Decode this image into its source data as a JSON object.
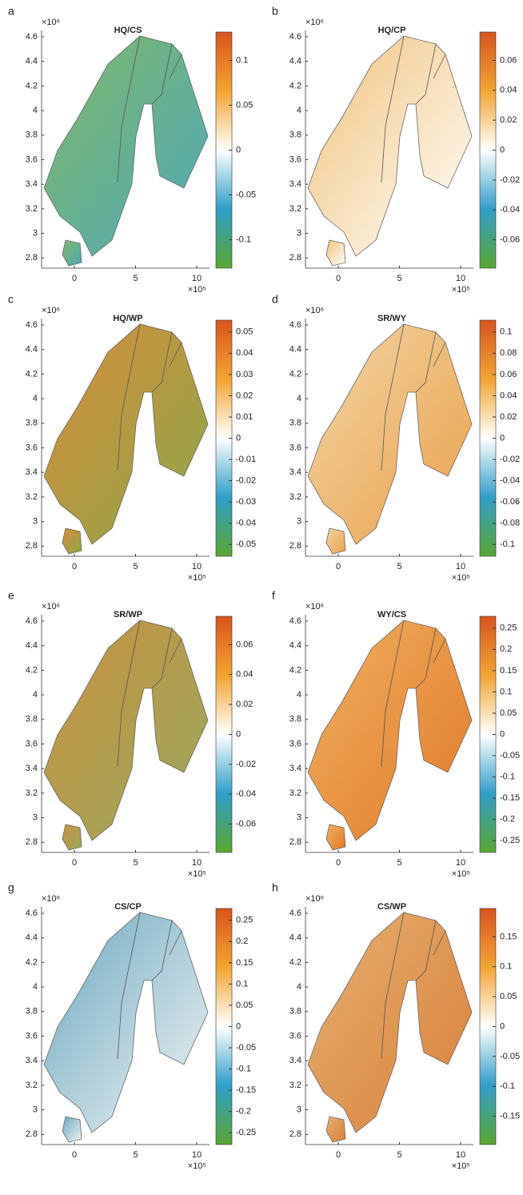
{
  "map_axes": {
    "y_ticks": [
      "4.6",
      "4.4",
      "4.2",
      "4",
      "3.8",
      "3.6",
      "3.4",
      "3.2",
      "3",
      "2.8"
    ],
    "x_ticks": [
      "0",
      "5",
      "10"
    ],
    "y_scale": "×10⁶",
    "x_scale": "×10⁵"
  },
  "panels": [
    {
      "letter": "a",
      "title": "HQ/CS",
      "colorbar_ticks": [
        "0.1",
        "0.05",
        "0",
        "-0.05",
        "-0.1"
      ]
    },
    {
      "letter": "b",
      "title": "HQ/CP",
      "colorbar_ticks": [
        "0.06",
        "0.04",
        "0.02",
        "0",
        "-0.02",
        "-0.04",
        "-0.06"
      ]
    },
    {
      "letter": "c",
      "title": "HQ/WP",
      "colorbar_ticks": [
        "0.05",
        "0.04",
        "0.03",
        "0.02",
        "0.01",
        "0",
        "-0.01",
        "-0.02",
        "-0.03",
        "-0.04",
        "-0.05"
      ]
    },
    {
      "letter": "d",
      "title": "SR/WY",
      "colorbar_ticks": [
        "0.1",
        "0.08",
        "0.06",
        "0.04",
        "0.02",
        "0",
        "-0.02",
        "-0.04",
        "-0.06",
        "-0.08",
        "-0.1"
      ]
    },
    {
      "letter": "e",
      "title": "SR/WP",
      "colorbar_ticks": [
        "0.06",
        "0.04",
        "0.02",
        "0",
        "-0.02",
        "-0.04",
        "-0.06"
      ]
    },
    {
      "letter": "f",
      "title": "WY/CS",
      "colorbar_ticks": [
        "0.25",
        "0.2",
        "0.15",
        "0.1",
        "0.05",
        "0",
        "-0.05",
        "-0.1",
        "-0.15",
        "-0.2",
        "-0.25"
      ]
    },
    {
      "letter": "g",
      "title": "CS/CP",
      "colorbar_ticks": [
        "0.25",
        "0.2",
        "0.15",
        "0.1",
        "0.05",
        "0",
        "-0.05",
        "-0.1",
        "-0.15",
        "-0.2",
        "-0.25"
      ]
    },
    {
      "letter": "h",
      "title": "CS/WP",
      "colorbar_ticks": [
        "0.15",
        "0.1",
        "0.05",
        "0",
        "-0.05",
        "-0.1",
        "-0.15"
      ]
    }
  ]
}
